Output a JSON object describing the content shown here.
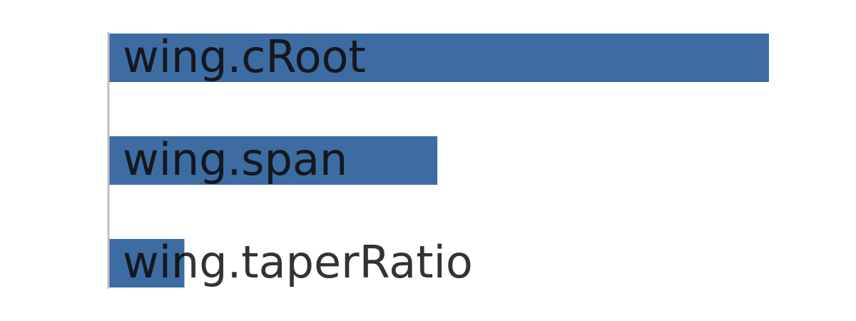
{
  "chart_data": {
    "type": "bar",
    "orientation": "horizontal",
    "categories": [
      "wing.cRoot",
      "wing.span",
      "wing.taperRatio"
    ],
    "values": [
      1.0,
      0.498,
      0.115
    ],
    "xlim": [
      0,
      1.0
    ],
    "grid": false,
    "bar_color": "#3d6ca3",
    "axis_color": "#c0c0c0",
    "label_color": "#333333",
    "label_on_bar_color": "#14181f"
  }
}
